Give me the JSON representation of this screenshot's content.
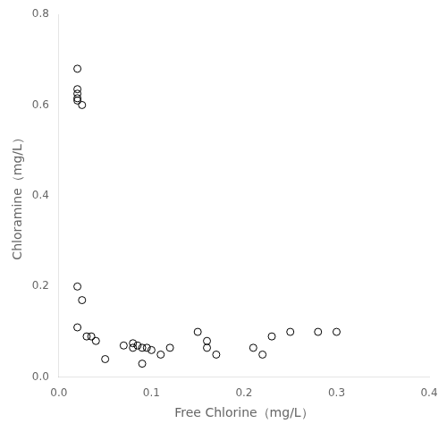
{
  "chart_data": {
    "type": "scatter",
    "x": [
      0.02,
      0.02,
      0.02,
      0.02,
      0.02,
      0.025,
      0.02,
      0.025,
      0.02,
      0.03,
      0.035,
      0.04,
      0.05,
      0.07,
      0.08,
      0.08,
      0.085,
      0.09,
      0.09,
      0.095,
      0.1,
      0.11,
      0.12,
      0.15,
      0.16,
      0.16,
      0.17,
      0.21,
      0.22,
      0.23,
      0.25,
      0.28,
      0.3
    ],
    "y": [
      0.68,
      0.635,
      0.625,
      0.615,
      0.61,
      0.6,
      0.2,
      0.17,
      0.11,
      0.09,
      0.09,
      0.08,
      0.04,
      0.07,
      0.065,
      0.075,
      0.07,
      0.065,
      0.03,
      0.065,
      0.06,
      0.05,
      0.065,
      0.1,
      0.08,
      0.065,
      0.05,
      0.065,
      0.05,
      0.09,
      0.1,
      0.1,
      0.1
    ],
    "xlabel": "Free Chlorine（mg/L）",
    "ylabel": "Chloramine（mg/L）",
    "xlim": [
      0.0,
      0.4
    ],
    "ylim": [
      0.0,
      0.8
    ],
    "xticks": [
      {
        "value": 0.0,
        "label": "0.0"
      },
      0.1,
      0.2,
      0.3,
      0.4
    ],
    "yticks": [
      {
        "value": 0.0,
        "label": "0.0"
      },
      0.2,
      0.4,
      0.6,
      0.8
    ],
    "color": "#000000",
    "marker": "circle",
    "grid": false
  }
}
